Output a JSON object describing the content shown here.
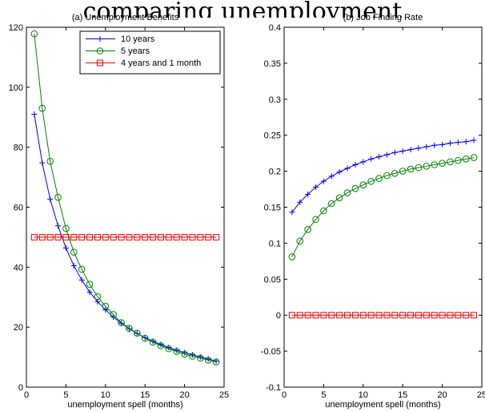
{
  "header_text": "comparing unemployment",
  "chart_data": [
    {
      "type": "line",
      "title": "(a) Unemployment Benefits",
      "xlabel": "unemployment spell (months)",
      "ylabel": "",
      "xlim": [
        0,
        25
      ],
      "ylim": [
        0,
        120
      ],
      "xticks": [
        0,
        5,
        10,
        15,
        20,
        25
      ],
      "yticks": [
        0,
        20,
        40,
        60,
        80,
        100,
        120
      ],
      "grid": false,
      "legend_position": "top-right",
      "x": [
        1,
        2,
        3,
        4,
        5,
        6,
        7,
        8,
        9,
        10,
        11,
        12,
        13,
        14,
        15,
        16,
        17,
        18,
        19,
        20,
        21,
        22,
        23,
        24
      ],
      "series": [
        {
          "name": "10 years",
          "color": "#0000ff",
          "marker": "plus",
          "values": [
            91,
            74.8,
            62.7,
            53.8,
            46.4,
            40.5,
            35.7,
            31.7,
            28.5,
            25.8,
            23.4,
            21.3,
            19.5,
            17.9,
            16.5,
            15.3,
            14.2,
            13.2,
            12.3,
            11.5,
            10.8,
            10.1,
            9.4,
            8.7
          ]
        },
        {
          "name": "5 years",
          "color": "#008000",
          "marker": "circle",
          "values": [
            117.8,
            93,
            75.3,
            63.3,
            52.9,
            45,
            39.3,
            34.3,
            30.2,
            27,
            24.2,
            21.5,
            19.6,
            18,
            16.3,
            15,
            13.8,
            12.8,
            11.9,
            11,
            10.3,
            9.7,
            9,
            8.4
          ]
        },
        {
          "name": "4 years and 1 month",
          "color": "#ff0000",
          "marker": "square",
          "values": [
            50,
            50,
            50,
            50,
            50,
            50,
            50,
            50,
            50,
            50,
            50,
            50,
            50,
            50,
            50,
            50,
            50,
            50,
            50,
            50,
            50,
            50,
            50,
            50
          ]
        }
      ]
    },
    {
      "type": "line",
      "title": "(b) Job Finding Rate",
      "xlabel": "unemployment spell (months)",
      "ylabel": "",
      "xlim": [
        0,
        25
      ],
      "ylim": [
        -0.1,
        0.4
      ],
      "xticks": [
        0,
        5,
        10,
        15,
        20,
        25
      ],
      "yticks": [
        -0.1,
        -0.05,
        0,
        0.05,
        0.1,
        0.15,
        0.2,
        0.25,
        0.3,
        0.35,
        0.4
      ],
      "grid": false,
      "x": [
        1,
        2,
        3,
        4,
        5,
        6,
        7,
        8,
        9,
        10,
        11,
        12,
        13,
        14,
        15,
        16,
        17,
        18,
        19,
        20,
        21,
        22,
        23,
        24
      ],
      "series": [
        {
          "name": "10 years",
          "color": "#0000ff",
          "marker": "plus",
          "values": [
            0.143,
            0.157,
            0.168,
            0.178,
            0.186,
            0.193,
            0.199,
            0.204,
            0.209,
            0.213,
            0.217,
            0.22,
            0.223,
            0.226,
            0.228,
            0.23,
            0.232,
            0.234,
            0.236,
            0.237,
            0.239,
            0.24,
            0.241,
            0.243
          ]
        },
        {
          "name": "5 years",
          "color": "#008000",
          "marker": "circle",
          "values": [
            0.081,
            0.103,
            0.119,
            0.133,
            0.145,
            0.155,
            0.163,
            0.17,
            0.176,
            0.181,
            0.186,
            0.19,
            0.194,
            0.197,
            0.2,
            0.203,
            0.205,
            0.207,
            0.209,
            0.211,
            0.213,
            0.215,
            0.217,
            0.219
          ]
        },
        {
          "name": "4 years and 1 month",
          "color": "#ff0000",
          "marker": "square",
          "values": [
            0,
            0,
            0,
            0,
            0,
            0,
            0,
            0,
            0,
            0,
            0,
            0,
            0,
            0,
            0,
            0,
            0,
            0,
            0,
            0,
            0,
            0,
            0,
            0
          ]
        }
      ]
    }
  ]
}
